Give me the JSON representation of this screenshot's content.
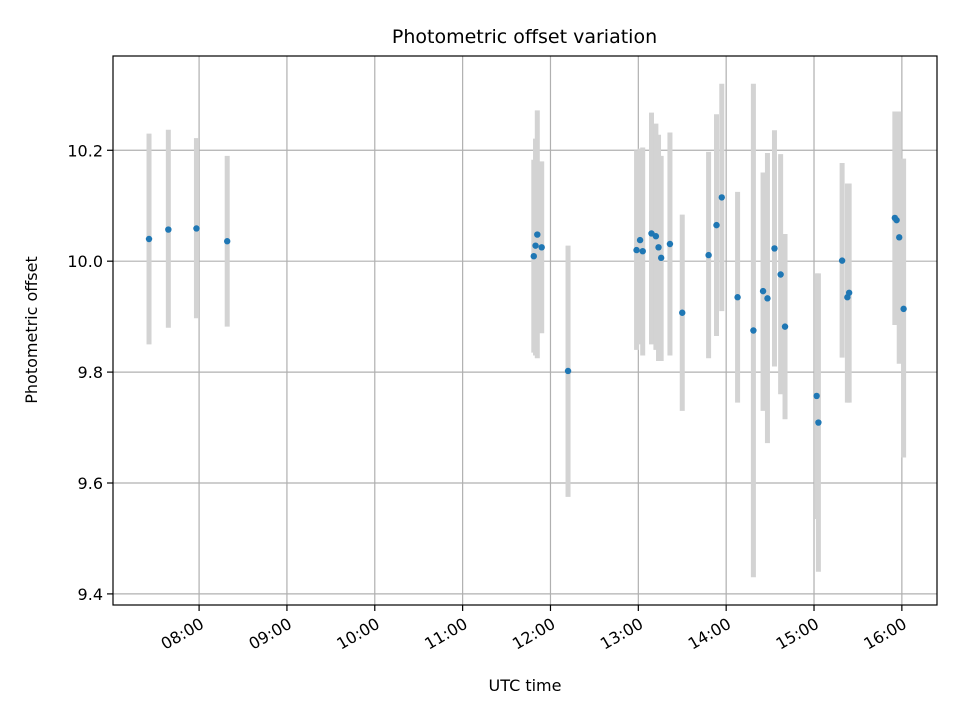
{
  "chart_data": {
    "type": "scatter",
    "title": "Photometric offset variation",
    "xlabel": "UTC time",
    "ylabel": "Photometric offset",
    "x_unit": "hours UTC",
    "xlim": [
      7.02,
      16.4
    ],
    "ylim": [
      9.38,
      10.37
    ],
    "grid": true,
    "x_ticks": [
      {
        "value": 8,
        "label": "08:00"
      },
      {
        "value": 9,
        "label": "09:00"
      },
      {
        "value": 10,
        "label": "10:00"
      },
      {
        "value": 11,
        "label": "11:00"
      },
      {
        "value": 12,
        "label": "12:00"
      },
      {
        "value": 13,
        "label": "13:00"
      },
      {
        "value": 14,
        "label": "14:00"
      },
      {
        "value": 15,
        "label": "15:00"
      },
      {
        "value": 16,
        "label": "16:00"
      }
    ],
    "y_ticks": [
      {
        "value": 9.4,
        "label": "9.4"
      },
      {
        "value": 9.6,
        "label": "9.6"
      },
      {
        "value": 9.8,
        "label": "9.8"
      },
      {
        "value": 10.0,
        "label": "10.0"
      },
      {
        "value": 10.2,
        "label": "10.2"
      }
    ],
    "colors": {
      "point": "#1f77b4",
      "errorbar": "#d3d3d3",
      "grid": "#b0b0b0",
      "axis": "#000000"
    },
    "points": [
      {
        "x": 7.43,
        "y": 10.04,
        "ylo": 9.85,
        "yhi": 10.23
      },
      {
        "x": 7.65,
        "y": 10.057,
        "ylo": 9.88,
        "yhi": 10.237
      },
      {
        "x": 7.97,
        "y": 10.059,
        "ylo": 9.897,
        "yhi": 10.222
      },
      {
        "x": 8.32,
        "y": 10.036,
        "ylo": 9.882,
        "yhi": 10.19
      },
      {
        "x": 11.81,
        "y": 10.009,
        "ylo": 9.835,
        "yhi": 10.183
      },
      {
        "x": 11.83,
        "y": 10.028,
        "ylo": 9.83,
        "yhi": 10.221
      },
      {
        "x": 11.85,
        "y": 10.048,
        "ylo": 9.825,
        "yhi": 10.272
      },
      {
        "x": 11.9,
        "y": 10.025,
        "ylo": 9.87,
        "yhi": 10.18
      },
      {
        "x": 12.2,
        "y": 9.802,
        "ylo": 9.575,
        "yhi": 10.028
      },
      {
        "x": 12.98,
        "y": 10.02,
        "ylo": 9.84,
        "yhi": 10.2
      },
      {
        "x": 13.02,
        "y": 10.038,
        "ylo": 9.85,
        "yhi": 10.203
      },
      {
        "x": 13.05,
        "y": 10.018,
        "ylo": 9.83,
        "yhi": 10.205
      },
      {
        "x": 13.15,
        "y": 10.05,
        "ylo": 9.85,
        "yhi": 10.268
      },
      {
        "x": 13.2,
        "y": 10.045,
        "ylo": 9.84,
        "yhi": 10.248
      },
      {
        "x": 13.23,
        "y": 10.025,
        "ylo": 9.82,
        "yhi": 10.228
      },
      {
        "x": 13.26,
        "y": 10.006,
        "ylo": 9.82,
        "yhi": 10.19
      },
      {
        "x": 13.36,
        "y": 10.031,
        "ylo": 9.83,
        "yhi": 10.232
      },
      {
        "x": 13.5,
        "y": 9.907,
        "ylo": 9.73,
        "yhi": 10.084
      },
      {
        "x": 13.8,
        "y": 10.011,
        "ylo": 9.825,
        "yhi": 10.197
      },
      {
        "x": 13.89,
        "y": 10.065,
        "ylo": 9.865,
        "yhi": 10.265
      },
      {
        "x": 13.95,
        "y": 10.115,
        "ylo": 9.91,
        "yhi": 10.32
      },
      {
        "x": 14.13,
        "y": 9.935,
        "ylo": 9.745,
        "yhi": 10.125
      },
      {
        "x": 14.31,
        "y": 9.875,
        "ylo": 9.43,
        "yhi": 10.32
      },
      {
        "x": 14.42,
        "y": 9.946,
        "ylo": 9.73,
        "yhi": 10.16
      },
      {
        "x": 14.47,
        "y": 9.933,
        "ylo": 9.672,
        "yhi": 10.195
      },
      {
        "x": 14.55,
        "y": 10.023,
        "ylo": 9.81,
        "yhi": 10.236
      },
      {
        "x": 14.62,
        "y": 9.976,
        "ylo": 9.76,
        "yhi": 10.193
      },
      {
        "x": 14.67,
        "y": 9.882,
        "ylo": 9.715,
        "yhi": 10.049
      },
      {
        "x": 15.03,
        "y": 9.757,
        "ylo": 9.535,
        "yhi": 9.978
      },
      {
        "x": 15.05,
        "y": 9.709,
        "ylo": 9.44,
        "yhi": 9.978
      },
      {
        "x": 15.32,
        "y": 10.001,
        "ylo": 9.826,
        "yhi": 10.177
      },
      {
        "x": 15.38,
        "y": 9.935,
        "ylo": 9.745,
        "yhi": 10.14
      },
      {
        "x": 15.4,
        "y": 9.943,
        "ylo": 9.745,
        "yhi": 10.14
      },
      {
        "x": 15.92,
        "y": 10.078,
        "ylo": 9.885,
        "yhi": 10.27
      },
      {
        "x": 15.94,
        "y": 10.074,
        "ylo": 9.89,
        "yhi": 10.268
      },
      {
        "x": 15.97,
        "y": 10.043,
        "ylo": 9.815,
        "yhi": 10.27
      },
      {
        "x": 16.02,
        "y": 9.914,
        "ylo": 9.646,
        "yhi": 10.185
      }
    ]
  }
}
